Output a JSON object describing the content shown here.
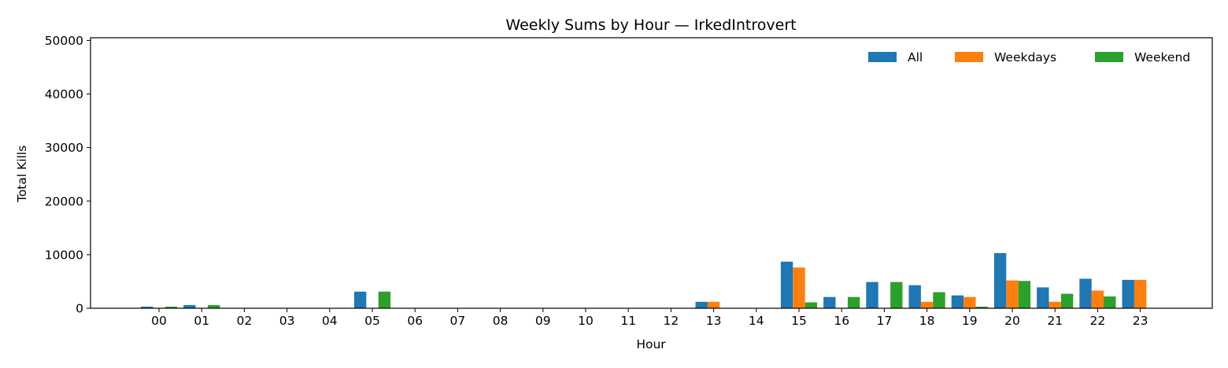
{
  "chart_data": {
    "type": "bar",
    "title": "Weekly Sums by Hour — IrkedIntrovert",
    "xlabel": "Hour",
    "ylabel": "Total Kills",
    "ylim": [
      0,
      50500
    ],
    "yticks": [
      "0",
      "10000",
      "20000",
      "30000",
      "40000",
      "50000"
    ],
    "legend_position": "top-right",
    "grid": false,
    "categories": [
      "00",
      "01",
      "02",
      "03",
      "04",
      "05",
      "06",
      "07",
      "08",
      "09",
      "10",
      "11",
      "12",
      "13",
      "14",
      "15",
      "16",
      "17",
      "18",
      "19",
      "20",
      "21",
      "22",
      "23"
    ],
    "series": [
      {
        "name": "All",
        "color": "#1f77b4",
        "values": [
          300,
          600,
          0,
          0,
          0,
          3100,
          0,
          0,
          0,
          0,
          0,
          0,
          0,
          1200,
          0,
          8700,
          2100,
          4900,
          4300,
          2400,
          10300,
          3900,
          5500,
          5300
        ]
      },
      {
        "name": "Weekdays",
        "color": "#ff7f0e",
        "values": [
          0,
          0,
          0,
          0,
          0,
          0,
          0,
          0,
          0,
          0,
          0,
          0,
          0,
          1200,
          0,
          7600,
          0,
          0,
          1200,
          2100,
          5200,
          1200,
          3300,
          5300
        ]
      },
      {
        "name": "Weekend",
        "color": "#2ca02c",
        "values": [
          300,
          600,
          0,
          0,
          0,
          3100,
          0,
          0,
          0,
          0,
          0,
          0,
          0,
          0,
          0,
          1100,
          2100,
          4900,
          3000,
          300,
          5100,
          2700,
          2200,
          0
        ]
      }
    ]
  }
}
